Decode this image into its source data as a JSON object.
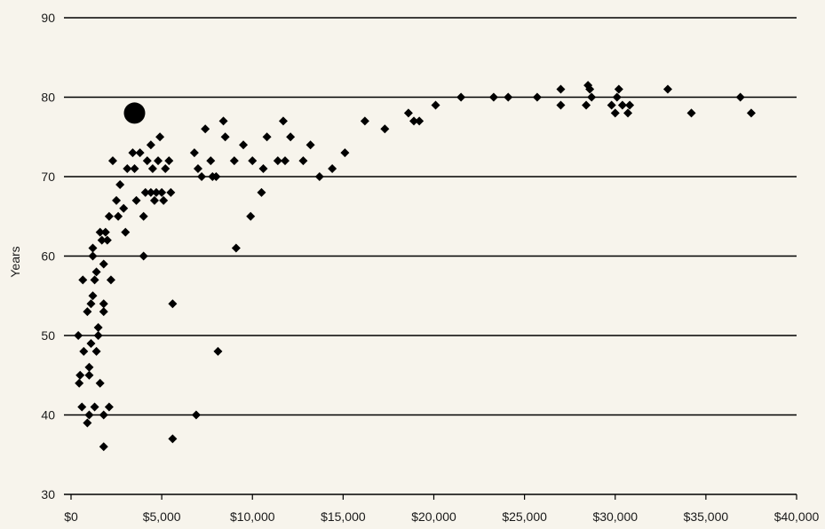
{
  "colors": {
    "background": "#f7f4ec",
    "gridline": "#000000",
    "marker": "#000000",
    "text": "#1a1a1a"
  },
  "chart_data": {
    "type": "scatter",
    "title": "",
    "xlabel": "",
    "ylabel": "Years",
    "xlim": [
      0,
      40000
    ],
    "ylim": [
      30,
      90
    ],
    "grid": "horizontal",
    "legend": "none",
    "x_ticks": [
      0,
      5000,
      10000,
      15000,
      20000,
      25000,
      30000,
      35000,
      40000
    ],
    "x_tick_labels": [
      "$0",
      "$5,000",
      "$10,000",
      "$15,000",
      "$20,000",
      "$25,000",
      "$30,000",
      "$35,000",
      "$40,000"
    ],
    "y_ticks": [
      30,
      40,
      50,
      60,
      70,
      80,
      90
    ],
    "y_tick_labels": [
      "30",
      "40",
      "50",
      "60",
      "70",
      "80",
      "90"
    ],
    "highlight": {
      "x": 3500,
      "y": 78
    },
    "points": [
      [
        400,
        50
      ],
      [
        450,
        44
      ],
      [
        500,
        45
      ],
      [
        600,
        41
      ],
      [
        650,
        57
      ],
      [
        700,
        48
      ],
      [
        900,
        53
      ],
      [
        900,
        39
      ],
      [
        1000,
        45
      ],
      [
        1000,
        46
      ],
      [
        1000,
        40
      ],
      [
        1100,
        49
      ],
      [
        1100,
        54
      ],
      [
        1200,
        55
      ],
      [
        1200,
        60
      ],
      [
        1200,
        61
      ],
      [
        1300,
        57
      ],
      [
        1300,
        41
      ],
      [
        1400,
        48
      ],
      [
        1400,
        58
      ],
      [
        1500,
        50
      ],
      [
        1500,
        51
      ],
      [
        1600,
        63
      ],
      [
        1600,
        44
      ],
      [
        1700,
        62
      ],
      [
        1800,
        59
      ],
      [
        1800,
        54
      ],
      [
        1800,
        53
      ],
      [
        1800,
        40
      ],
      [
        1800,
        36
      ],
      [
        1900,
        63
      ],
      [
        2000,
        62
      ],
      [
        2100,
        65
      ],
      [
        2100,
        41
      ],
      [
        2200,
        57
      ],
      [
        2300,
        72
      ],
      [
        2500,
        67
      ],
      [
        2600,
        65
      ],
      [
        2700,
        69
      ],
      [
        2900,
        66
      ],
      [
        3000,
        63
      ],
      [
        3100,
        71
      ],
      [
        3400,
        73
      ],
      [
        3500,
        71
      ],
      [
        3600,
        67
      ],
      [
        3800,
        73
      ],
      [
        4000,
        65
      ],
      [
        4000,
        60
      ],
      [
        4100,
        68
      ],
      [
        4200,
        72
      ],
      [
        4400,
        74
      ],
      [
        4400,
        68
      ],
      [
        4500,
        71
      ],
      [
        4600,
        67
      ],
      [
        4700,
        68
      ],
      [
        4800,
        72
      ],
      [
        4900,
        75
      ],
      [
        5000,
        68
      ],
      [
        5100,
        67
      ],
      [
        5200,
        71
      ],
      [
        5400,
        72
      ],
      [
        5500,
        68
      ],
      [
        5600,
        54
      ],
      [
        5600,
        37
      ],
      [
        6800,
        73
      ],
      [
        6900,
        40
      ],
      [
        7000,
        71
      ],
      [
        7200,
        70
      ],
      [
        7400,
        76
      ],
      [
        7700,
        72
      ],
      [
        7800,
        70
      ],
      [
        8000,
        70
      ],
      [
        8100,
        48
      ],
      [
        8400,
        77
      ],
      [
        8500,
        75
      ],
      [
        9000,
        72
      ],
      [
        9100,
        61
      ],
      [
        9500,
        74
      ],
      [
        9900,
        65
      ],
      [
        10000,
        72
      ],
      [
        10500,
        68
      ],
      [
        10600,
        71
      ],
      [
        10800,
        75
      ],
      [
        11400,
        72
      ],
      [
        11700,
        77
      ],
      [
        11800,
        72
      ],
      [
        12100,
        75
      ],
      [
        12800,
        72
      ],
      [
        13200,
        74
      ],
      [
        13700,
        70
      ],
      [
        14400,
        71
      ],
      [
        15100,
        73
      ],
      [
        16200,
        77
      ],
      [
        17300,
        76
      ],
      [
        18600,
        78
      ],
      [
        18900,
        77
      ],
      [
        19200,
        77
      ],
      [
        20100,
        79
      ],
      [
        21500,
        80
      ],
      [
        23300,
        80
      ],
      [
        24100,
        80
      ],
      [
        25700,
        80
      ],
      [
        27000,
        81
      ],
      [
        27000,
        79
      ],
      [
        28400,
        79
      ],
      [
        28500,
        81.5
      ],
      [
        28600,
        81
      ],
      [
        28700,
        80
      ],
      [
        29800,
        79
      ],
      [
        30000,
        78
      ],
      [
        30100,
        80
      ],
      [
        30200,
        81
      ],
      [
        30400,
        79
      ],
      [
        30700,
        78
      ],
      [
        30800,
        79
      ],
      [
        32900,
        81
      ],
      [
        34200,
        78
      ],
      [
        36900,
        80
      ],
      [
        37500,
        78
      ]
    ]
  }
}
